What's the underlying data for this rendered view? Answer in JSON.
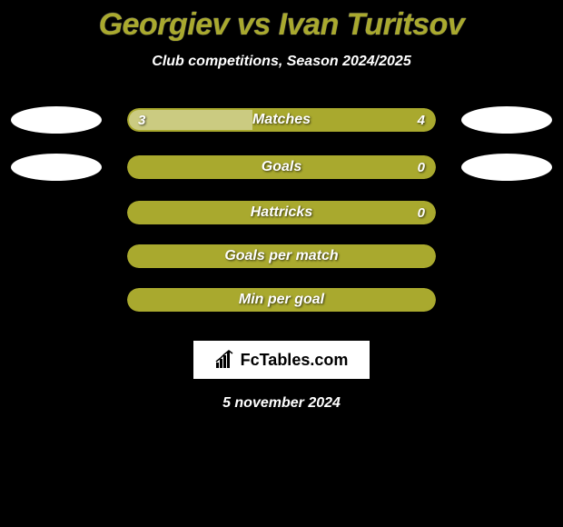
{
  "title": "Georgiev vs Ivan Turitsov",
  "subtitle": "Club competitions, Season 2024/2025",
  "colors": {
    "background": "#000000",
    "bar_color": "#a9a92e",
    "bar_highlight": "rgba(255,255,255,0.4)",
    "text_white": "#ffffff",
    "title_color": "#a9a92e"
  },
  "stats": [
    {
      "label": "Matches",
      "left_value": "3",
      "right_value": "4",
      "show_left_avatar": true,
      "show_right_avatar": true,
      "left_fill_pct": 40
    },
    {
      "label": "Goals",
      "left_value": "",
      "right_value": "0",
      "show_left_avatar": true,
      "show_right_avatar": true,
      "left_fill_pct": 0
    },
    {
      "label": "Hattricks",
      "left_value": "",
      "right_value": "0",
      "show_left_avatar": false,
      "show_right_avatar": false,
      "left_fill_pct": 0
    },
    {
      "label": "Goals per match",
      "left_value": "",
      "right_value": "",
      "show_left_avatar": false,
      "show_right_avatar": false,
      "left_fill_pct": 0
    },
    {
      "label": "Min per goal",
      "left_value": "",
      "right_value": "",
      "show_left_avatar": false,
      "show_right_avatar": false,
      "left_fill_pct": 0
    }
  ],
  "brand": "FcTables.com",
  "date": "5 november 2024"
}
